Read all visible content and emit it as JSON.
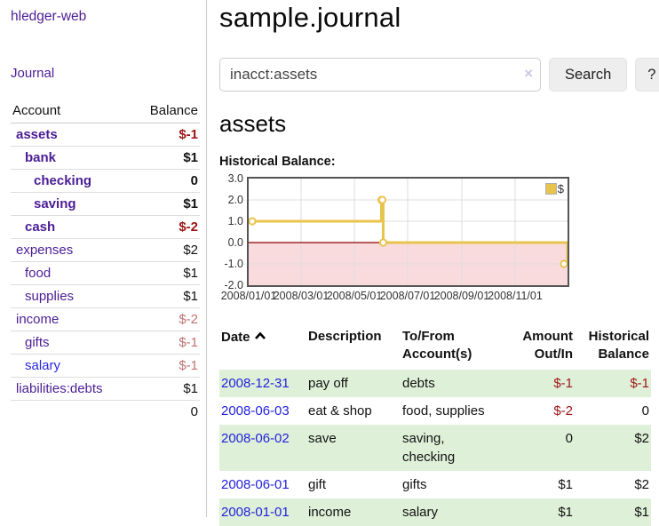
{
  "sidebar": {
    "app_title": "hledger-web",
    "journal_link": "Journal",
    "table": {
      "account_header": "Account",
      "balance_header": "Balance",
      "rows": [
        {
          "name": "assets",
          "balance": "$-1"
        },
        {
          "name": "bank",
          "balance": "$1"
        },
        {
          "name": "checking",
          "balance": "0"
        },
        {
          "name": "saving",
          "balance": "$1"
        },
        {
          "name": "cash",
          "balance": "$-2"
        },
        {
          "name": "expenses",
          "balance": "$2"
        },
        {
          "name": "food",
          "balance": "$1"
        },
        {
          "name": "supplies",
          "balance": "$1"
        },
        {
          "name": "income",
          "balance": "$-2"
        },
        {
          "name": "gifts",
          "balance": "$-1"
        },
        {
          "name": "salary",
          "balance": "$-1"
        },
        {
          "name": "liabilities:debts",
          "balance": "$1"
        }
      ],
      "total": "0"
    }
  },
  "main": {
    "title": "sample.journal",
    "search": {
      "value": "inacct:assets",
      "clear_icon": "×",
      "search_button": "Search",
      "help_button": "?"
    },
    "account_heading": "assets",
    "section_label": "Historical Balance:"
  },
  "chart_data": {
    "type": "line",
    "title": "Historical Balance:",
    "step": true,
    "series": [
      {
        "name": "$",
        "points": [
          [
            "2008-01-01",
            1
          ],
          [
            "2008-06-01",
            2
          ],
          [
            "2008-06-02",
            2
          ],
          [
            "2008-06-03",
            0
          ],
          [
            "2008-12-31",
            -1
          ]
        ]
      }
    ],
    "x_range": [
      "2008-01-01",
      "2008-12-31"
    ],
    "ylim": [
      -2,
      3
    ],
    "y_ticks": [
      "3.0",
      "2.0",
      "1.0",
      "0.0",
      "-1.0",
      "-2.0"
    ],
    "x_ticks": [
      "2008/01/01",
      "2008/03/01",
      "2008/05/01",
      "2008/07/01",
      "2008/09/01",
      "2008/11/01"
    ],
    "grid": true,
    "legend": {
      "label": "$",
      "position": "top-right"
    },
    "colors": {
      "line": "#e8c44f",
      "marker_fill": "#ffffff",
      "negative_fill": "#fadbdd",
      "zero_line": "#8b0000",
      "grid": "#dddddd",
      "border": "#545454"
    }
  },
  "register": {
    "headers": {
      "date": "Date",
      "description": "Description",
      "accounts": "To/From Account(s)",
      "amount": "Amount Out/In",
      "balance": "Historical Balance"
    },
    "rows": [
      {
        "date": "2008-12-31",
        "description": "pay off",
        "accounts": "debts",
        "amount": "$-1",
        "balance": "$-1"
      },
      {
        "date": "2008-06-03",
        "description": "eat & shop",
        "accounts": "food, supplies",
        "amount": "$-2",
        "balance": "0"
      },
      {
        "date": "2008-06-02",
        "description": "save",
        "accounts": "saving, checking",
        "amount": "0",
        "balance": "$2"
      },
      {
        "date": "2008-06-01",
        "description": "gift",
        "accounts": "gifts",
        "amount": "$1",
        "balance": "$2"
      },
      {
        "date": "2008-01-01",
        "description": "income",
        "accounts": "salary",
        "amount": "$1",
        "balance": "$1"
      }
    ]
  },
  "colors": {
    "link_purple": "#4b1d95",
    "link_blue": "#2222dd",
    "negative_strong": "#9d1515",
    "negative_soft": "#bf7373",
    "row_highlight_green": "#dff0d8",
    "button_gray": "#eeeeee"
  }
}
